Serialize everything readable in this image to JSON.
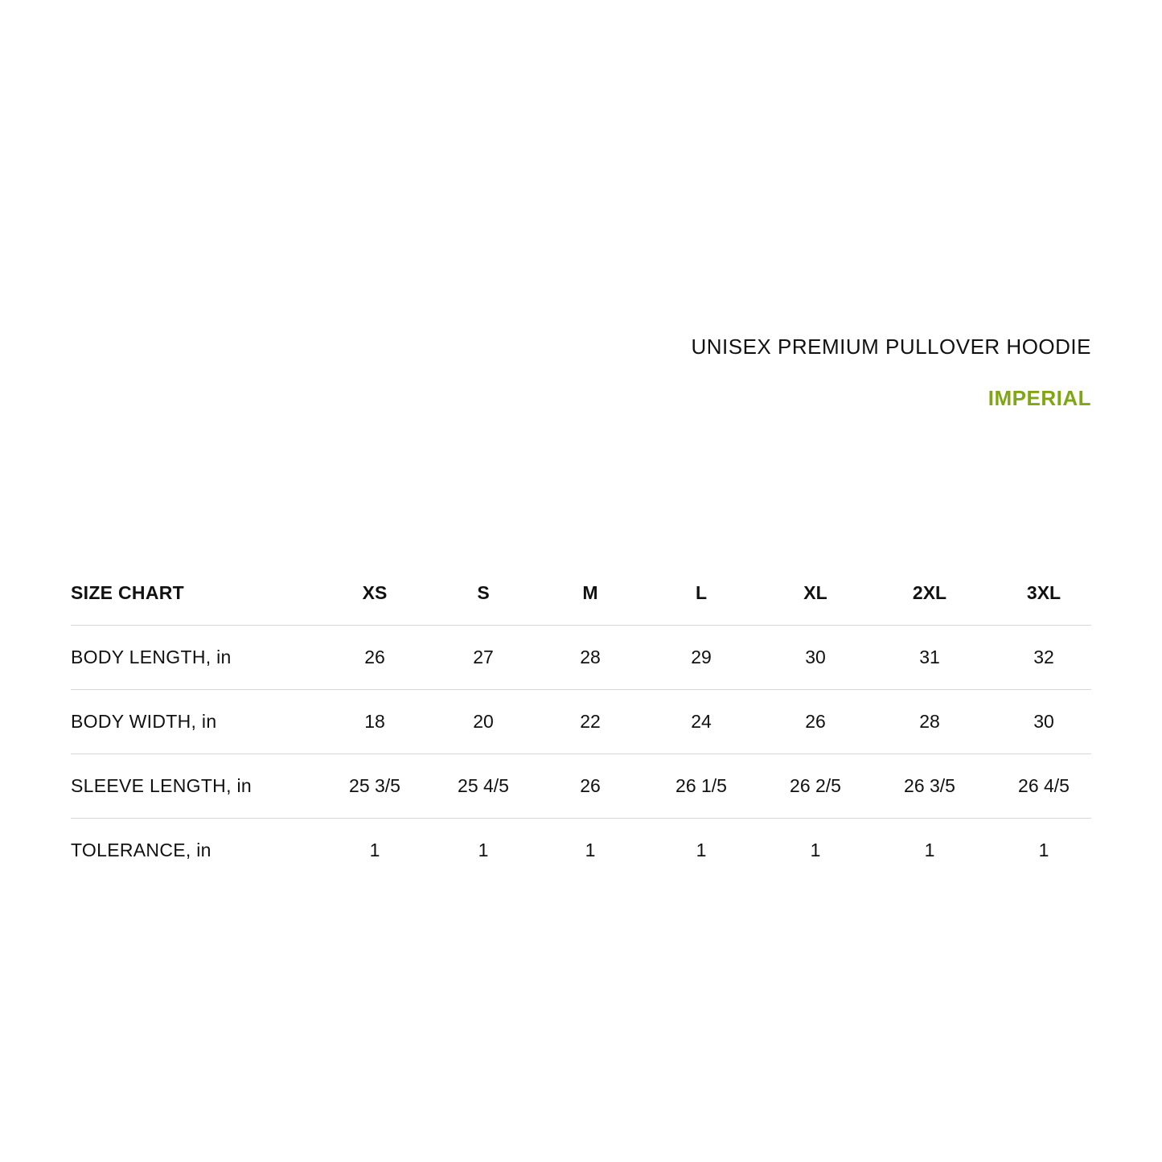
{
  "title": "UNISEX PREMIUM PULLOVER HOODIE",
  "subtitle": "IMPERIAL",
  "accent_color": "#7fa614",
  "table": {
    "header_label": "SIZE CHART",
    "sizes": [
      "XS",
      "S",
      "M",
      "L",
      "XL",
      "2XL",
      "3XL"
    ],
    "rows": [
      {
        "label": "BODY LENGTH, in",
        "values": [
          "26",
          "27",
          "28",
          "29",
          "30",
          "31",
          "32"
        ]
      },
      {
        "label": "BODY WIDTH, in",
        "values": [
          "18",
          "20",
          "22",
          "24",
          "26",
          "28",
          "30"
        ]
      },
      {
        "label": "SLEEVE LENGTH, in",
        "values": [
          "25 3/5",
          "25 4/5",
          "26",
          "26 1/5",
          "26 2/5",
          "26 3/5",
          "26 4/5"
        ]
      },
      {
        "label": "TOLERANCE, in",
        "values": [
          "1",
          "1",
          "1",
          "1",
          "1",
          "1",
          "1"
        ]
      }
    ]
  }
}
